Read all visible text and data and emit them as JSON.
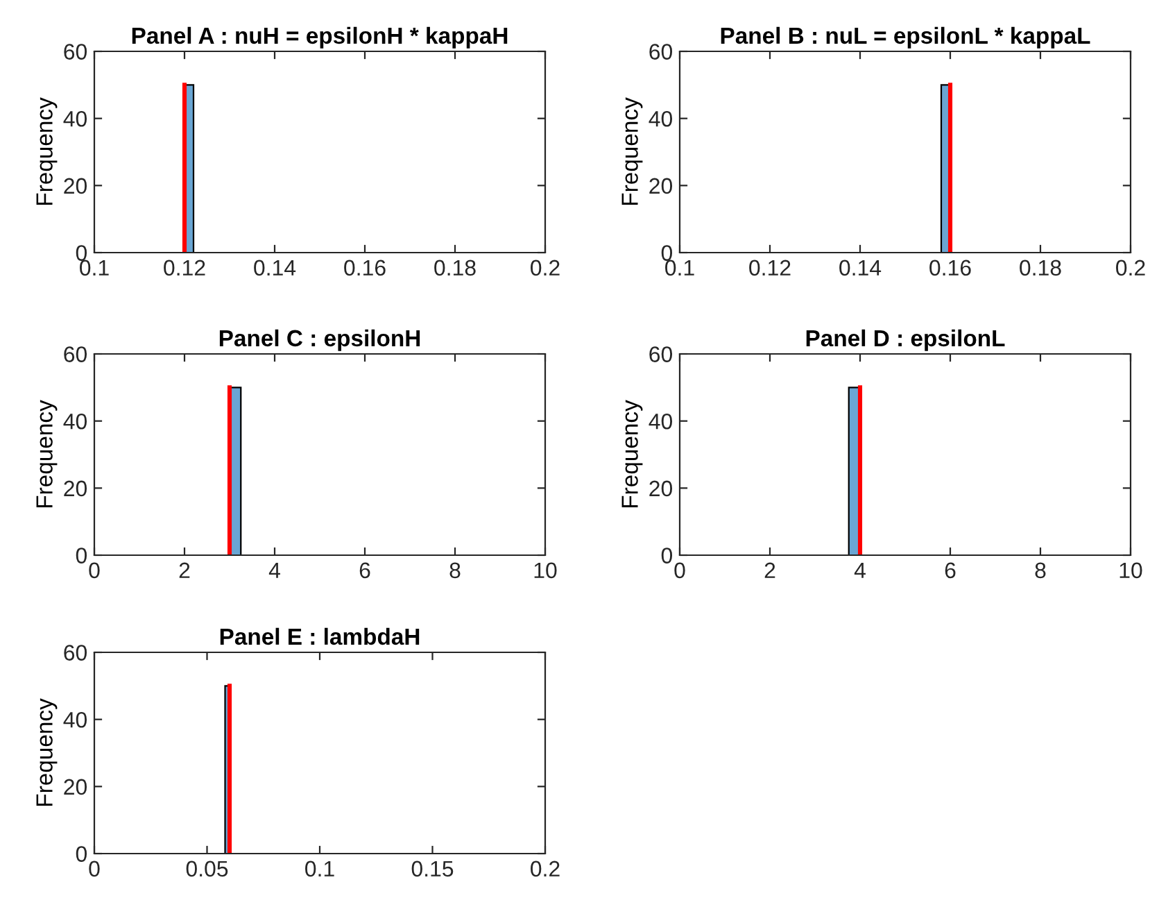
{
  "chart_data": [
    {
      "type": "histogram",
      "title": "Panel A : nuH = epsilonH * kappaH",
      "ylabel": "Frequency",
      "color": "#6aa6d4",
      "bins": [
        0.1,
        0.102,
        0.104,
        0.106,
        0.108,
        0.11,
        0.112,
        0.114,
        0.116,
        0.118,
        0.12,
        0.122,
        0.124,
        0.126,
        0.128,
        0.13,
        0.132,
        0.134,
        0.136,
        0.138,
        0.14,
        0.142,
        0.144,
        0.146,
        0.148,
        0.15,
        0.152,
        0.154,
        0.156,
        0.158,
        0.16,
        0.162,
        0.164,
        0.166,
        0.168,
        0.17,
        0.172,
        0.174,
        0.176,
        0.178,
        0.18,
        0.182,
        0.184,
        0.186,
        0.188,
        0.19,
        0.192,
        0.194,
        0.196,
        0.198,
        0.2
      ],
      "values": [
        0,
        0,
        0,
        0,
        0,
        0,
        0,
        0,
        0,
        0,
        50,
        0,
        0,
        0,
        0,
        0,
        0,
        0,
        0,
        0,
        0,
        0,
        0,
        0,
        0,
        0,
        0,
        0,
        0,
        0,
        0,
        0,
        0,
        0,
        0,
        0,
        0,
        0,
        0,
        0,
        0,
        0,
        0,
        0,
        0,
        0,
        0,
        0,
        0,
        0
      ],
      "xlim": [
        0.1,
        0.2
      ],
      "xticks": [
        0.1,
        0.12,
        0.14,
        0.16,
        0.18,
        0.2
      ],
      "ylim": [
        0,
        60
      ],
      "yticks": [
        0,
        20,
        40,
        60
      ],
      "ref_lines": [
        {
          "axis": "x",
          "value": 0.12,
          "color": "#ff0000"
        }
      ]
    },
    {
      "type": "histogram",
      "title": "Panel B : nuL = epsilonL * kappaL",
      "ylabel": "Frequency",
      "color": "#6aa6d4",
      "bins": [
        0.1,
        0.102,
        0.104,
        0.106,
        0.108,
        0.11,
        0.112,
        0.114,
        0.116,
        0.118,
        0.12,
        0.122,
        0.124,
        0.126,
        0.128,
        0.13,
        0.132,
        0.134,
        0.136,
        0.138,
        0.14,
        0.142,
        0.144,
        0.146,
        0.148,
        0.15,
        0.152,
        0.154,
        0.156,
        0.158,
        0.16,
        0.162,
        0.164,
        0.166,
        0.168,
        0.17,
        0.172,
        0.174,
        0.176,
        0.178,
        0.18,
        0.182,
        0.184,
        0.186,
        0.188,
        0.19,
        0.192,
        0.194,
        0.196,
        0.198,
        0.2
      ],
      "values": [
        0,
        0,
        0,
        0,
        0,
        0,
        0,
        0,
        0,
        0,
        0,
        0,
        0,
        0,
        0,
        0,
        0,
        0,
        0,
        0,
        0,
        0,
        0,
        0,
        0,
        0,
        0,
        0,
        0,
        50,
        0,
        0,
        0,
        0,
        0,
        0,
        0,
        0,
        0,
        0,
        0,
        0,
        0,
        0,
        0,
        0,
        0,
        0,
        0,
        0
      ],
      "xlim": [
        0.1,
        0.2
      ],
      "xticks": [
        0.1,
        0.12,
        0.14,
        0.16,
        0.18,
        0.2
      ],
      "ylim": [
        0,
        60
      ],
      "yticks": [
        0,
        20,
        40,
        60
      ],
      "ref_lines": [
        {
          "axis": "x",
          "value": 0.16,
          "color": "#ff0000"
        }
      ]
    },
    {
      "type": "histogram",
      "title": "Panel C : epsilonH",
      "ylabel": "Frequency",
      "color": "#6aa6d4",
      "bins": [
        1,
        1.25,
        1.5,
        1.75,
        2,
        2.25,
        2.5,
        2.75,
        3,
        3.25,
        3.5,
        3.75,
        4,
        4.25,
        4.5,
        4.75,
        5,
        5.25,
        5.5,
        5.75,
        6,
        6.25,
        6.5,
        6.75,
        7,
        7.25,
        7.5,
        7.75,
        8,
        8.25,
        8.5,
        8.75,
        9,
        9.25,
        9.5,
        9.75,
        10
      ],
      "values": [
        0,
        0,
        0,
        0,
        0,
        0,
        0,
        0,
        50,
        0,
        0,
        0,
        0,
        0,
        0,
        0,
        0,
        0,
        0,
        0,
        0,
        0,
        0,
        0,
        0,
        0,
        0,
        0,
        0,
        0,
        0,
        0,
        0,
        0,
        0,
        0
      ],
      "xlim": [
        0,
        10
      ],
      "xticks": [
        0,
        2,
        4,
        6,
        8,
        10
      ],
      "ylim": [
        0,
        60
      ],
      "yticks": [
        0,
        20,
        40,
        60
      ],
      "ref_lines": [
        {
          "axis": "x",
          "value": 3,
          "color": "#ff0000"
        }
      ]
    },
    {
      "type": "histogram",
      "title": "Panel D : epsilonL",
      "ylabel": "Frequency",
      "color": "#6aa6d4",
      "bins": [
        1,
        1.25,
        1.5,
        1.75,
        2,
        2.25,
        2.5,
        2.75,
        3,
        3.25,
        3.5,
        3.75,
        4,
        4.25,
        4.5,
        4.75,
        5,
        5.25,
        5.5,
        5.75,
        6,
        6.25,
        6.5,
        6.75,
        7,
        7.25,
        7.5,
        7.75,
        8,
        8.25,
        8.5,
        8.75,
        9,
        9.25,
        9.5,
        9.75,
        10
      ],
      "values": [
        0,
        0,
        0,
        0,
        0,
        0,
        0,
        0,
        0,
        0,
        0,
        50,
        0,
        0,
        0,
        0,
        0,
        0,
        0,
        0,
        0,
        0,
        0,
        0,
        0,
        0,
        0,
        0,
        0,
        0,
        0,
        0,
        0,
        0,
        0,
        0
      ],
      "xlim": [
        0,
        10
      ],
      "xticks": [
        0,
        2,
        4,
        6,
        8,
        10
      ],
      "ylim": [
        0,
        60
      ],
      "yticks": [
        0,
        20,
        40,
        60
      ],
      "ref_lines": [
        {
          "axis": "x",
          "value": 4,
          "color": "#ff0000"
        }
      ]
    },
    {
      "type": "histogram",
      "title": "Panel E : lambdaH",
      "ylabel": "Frequency",
      "color": "#6aa6d4",
      "bins": [
        0.01,
        0.012,
        0.014,
        0.016,
        0.018,
        0.02,
        0.022,
        0.024,
        0.026,
        0.028,
        0.03,
        0.032,
        0.034,
        0.036,
        0.038,
        0.04,
        0.042,
        0.044,
        0.046,
        0.048,
        0.05,
        0.052,
        0.054,
        0.056,
        0.058,
        0.06,
        0.062,
        0.064,
        0.066,
        0.068,
        0.07,
        0.072,
        0.074,
        0.076,
        0.078,
        0.08,
        0.082,
        0.084,
        0.086,
        0.088,
        0.09,
        0.092,
        0.094,
        0.096,
        0.098,
        0.1,
        0.102,
        0.104,
        0.106,
        0.108,
        0.11,
        0.112,
        0.114,
        0.116,
        0.118,
        0.12,
        0.122,
        0.124,
        0.126,
        0.128,
        0.13,
        0.132,
        0.134,
        0.136,
        0.138,
        0.14,
        0.142,
        0.144,
        0.146,
        0.148,
        0.15,
        0.152,
        0.154,
        0.156,
        0.158,
        0.16,
        0.162,
        0.164,
        0.166,
        0.168,
        0.17,
        0.172,
        0.174,
        0.176,
        0.178,
        0.18,
        0.182,
        0.184,
        0.186,
        0.188,
        0.19,
        0.192,
        0.194,
        0.196,
        0.198,
        0.2
      ],
      "values": [
        0,
        0,
        0,
        0,
        0,
        0,
        0,
        0,
        0,
        0,
        0,
        0,
        0,
        0,
        0,
        0,
        0,
        0,
        0,
        0,
        0,
        0,
        0,
        0,
        50,
        0,
        0,
        0,
        0,
        0,
        0,
        0,
        0,
        0,
        0,
        0,
        0,
        0,
        0,
        0,
        0,
        0,
        0,
        0,
        0,
        0,
        0,
        0,
        0,
        0,
        0,
        0,
        0,
        0,
        0,
        0,
        0,
        0,
        0,
        0,
        0,
        0,
        0,
        0,
        0,
        0,
        0,
        0,
        0,
        0,
        0,
        0,
        0,
        0,
        0,
        0,
        0,
        0,
        0,
        0,
        0,
        0,
        0,
        0,
        0,
        0,
        0,
        0,
        0,
        0,
        0,
        0,
        0,
        0,
        0
      ],
      "xlim": [
        0,
        0.2
      ],
      "xticks": [
        0,
        0.05,
        0.1,
        0.15,
        0.2
      ],
      "ylim": [
        0,
        60
      ],
      "yticks": [
        0,
        20,
        40,
        60
      ],
      "ref_lines": [
        {
          "axis": "x",
          "value": 0.06,
          "color": "#ff0000"
        }
      ]
    }
  ]
}
